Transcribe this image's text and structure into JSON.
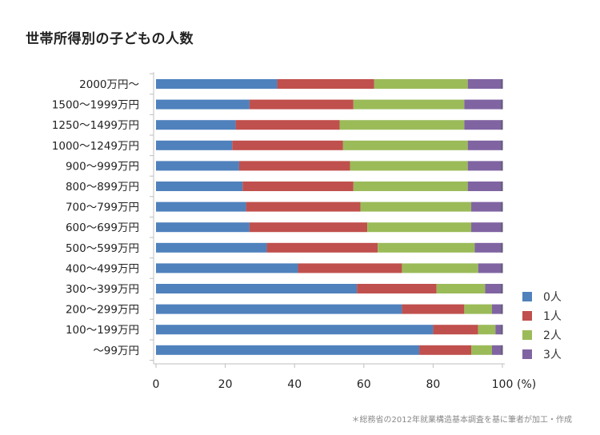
{
  "title": "世帯所得別の子どもの人数",
  "note": "＊総務省の2012年就業構造基本調査を基に筆者が加工・作成",
  "chart_data": {
    "type": "bar",
    "orientation": "horizontal",
    "stacked": true,
    "title": "世帯所得別の子どもの人数",
    "xlabel": "(%)",
    "ylabel": "",
    "xlim": [
      0,
      100
    ],
    "xticks": [
      0,
      20,
      40,
      60,
      80,
      100
    ],
    "xtick_labels": [
      "0",
      "20",
      "40",
      "60",
      "80",
      "100"
    ],
    "unit": "(%)",
    "legend_position": "right",
    "grid": false,
    "categories": [
      "2000万円～",
      "1500～1999万円",
      "1250～1499万円",
      "1000～1249万円",
      "900～999万円",
      "800～899万円",
      "700～799万円",
      "600～699万円",
      "500～599万円",
      "400～499万円",
      "300～399万円",
      "200～299万円",
      "100～199万円",
      "～99万円"
    ],
    "series": [
      {
        "name": "0人",
        "color": "#4f81bd",
        "values": [
          35,
          27,
          23,
          22,
          24,
          25,
          26,
          27,
          32,
          41,
          58,
          71,
          80,
          76
        ]
      },
      {
        "name": "1人",
        "color": "#c0504d",
        "values": [
          28,
          30,
          30,
          32,
          32,
          32,
          33,
          34,
          32,
          30,
          23,
          18,
          13,
          15
        ]
      },
      {
        "name": "2人",
        "color": "#9bbb59",
        "values": [
          27,
          32,
          36,
          36,
          34,
          33,
          32,
          30,
          28,
          22,
          14,
          8,
          5,
          6
        ]
      },
      {
        "name": "3人",
        "color": "#8064a2",
        "values": [
          10,
          11,
          11,
          10,
          10,
          10,
          9,
          9,
          8,
          7,
          5,
          3,
          2,
          3
        ]
      }
    ]
  }
}
